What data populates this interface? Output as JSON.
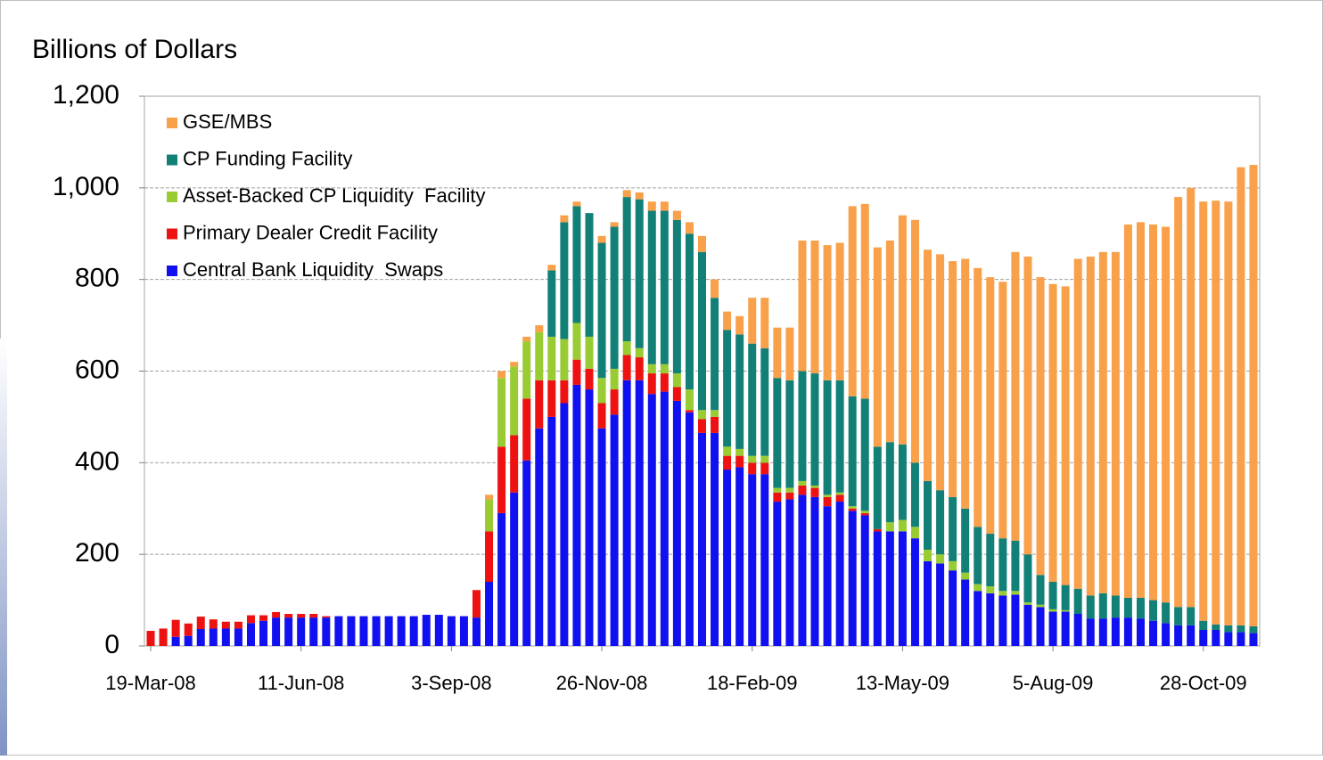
{
  "chart_data": {
    "type": "stacked_bar",
    "y_axis_label": "Billions of Dollars",
    "categories": [
      "19-Mar-08",
      null,
      null,
      null,
      null,
      null,
      null,
      null,
      null,
      null,
      null,
      null,
      "11-Jun-08",
      null,
      null,
      null,
      null,
      null,
      null,
      null,
      null,
      null,
      null,
      null,
      "3-Sep-08",
      null,
      null,
      null,
      null,
      null,
      null,
      null,
      null,
      null,
      null,
      null,
      "26-Nov-08",
      null,
      null,
      null,
      null,
      null,
      null,
      null,
      null,
      null,
      null,
      null,
      "18-Feb-09",
      null,
      null,
      null,
      null,
      null,
      null,
      null,
      null,
      null,
      null,
      null,
      "13-May-09",
      null,
      null,
      null,
      null,
      null,
      null,
      null,
      null,
      null,
      null,
      null,
      "5-Aug-09",
      null,
      null,
      null,
      null,
      null,
      null,
      null,
      null,
      null,
      null,
      null,
      "28-Oct-09",
      null,
      null,
      null,
      null
    ],
    "series": [
      {
        "name": "Central Bank Liquidity  Swaps",
        "color": "#1010f0",
        "values": [
          0,
          0,
          20,
          22,
          37,
          38,
          38,
          38,
          50,
          55,
          62,
          62,
          62,
          62,
          62,
          65,
          65,
          65,
          65,
          65,
          65,
          65,
          68,
          68,
          65,
          65,
          62,
          140,
          290,
          335,
          405,
          475,
          500,
          530,
          570,
          560,
          475,
          505,
          580,
          580,
          550,
          555,
          535,
          510,
          465,
          465,
          385,
          390,
          375,
          375,
          315,
          320,
          330,
          325,
          305,
          315,
          295,
          285,
          250,
          250,
          250,
          235,
          185,
          180,
          165,
          145,
          120,
          115,
          110,
          112,
          90,
          85,
          75,
          75,
          70,
          60,
          60,
          62,
          62,
          60,
          55,
          50,
          45,
          45,
          35,
          35,
          30,
          30,
          28
        ]
      },
      {
        "name": "Primary Dealer Credit Facility",
        "color": "#ee1111",
        "values": [
          33,
          38,
          37,
          27,
          27,
          20,
          15,
          15,
          17,
          12,
          12,
          8,
          8,
          8,
          3,
          0,
          0,
          0,
          0,
          0,
          0,
          0,
          0,
          0,
          0,
          0,
          60,
          110,
          145,
          125,
          135,
          105,
          80,
          50,
          55,
          45,
          55,
          55,
          55,
          50,
          45,
          40,
          30,
          5,
          30,
          35,
          30,
          25,
          25,
          25,
          20,
          15,
          20,
          20,
          20,
          15,
          5,
          5,
          5,
          0,
          0,
          0,
          0,
          0,
          0,
          0,
          0,
          0,
          0,
          0,
          0,
          0,
          0,
          0,
          0,
          0,
          0,
          0,
          0,
          0,
          0,
          0,
          0,
          0,
          0,
          0,
          0,
          0,
          0
        ]
      },
      {
        "name": "Asset-Backed CP Liquidity  Facility",
        "color": "#99cc33",
        "values": [
          0,
          0,
          0,
          0,
          0,
          0,
          0,
          0,
          0,
          0,
          0,
          0,
          0,
          0,
          0,
          0,
          0,
          0,
          0,
          0,
          0,
          0,
          0,
          0,
          0,
          0,
          0,
          70,
          150,
          150,
          125,
          105,
          95,
          90,
          80,
          70,
          55,
          45,
          30,
          20,
          20,
          20,
          30,
          45,
          20,
          15,
          20,
          15,
          15,
          15,
          10,
          10,
          10,
          5,
          5,
          5,
          5,
          5,
          0,
          20,
          25,
          25,
          25,
          20,
          20,
          15,
          15,
          15,
          10,
          8,
          5,
          5,
          5,
          3,
          0,
          0,
          0,
          0,
          0,
          0,
          0,
          0,
          0,
          0,
          0,
          0,
          0,
          0,
          0
        ]
      },
      {
        "name": "CP Funding Facility",
        "color": "#138078",
        "values": [
          0,
          0,
          0,
          0,
          0,
          0,
          0,
          0,
          0,
          0,
          0,
          0,
          0,
          0,
          0,
          0,
          0,
          0,
          0,
          0,
          0,
          0,
          0,
          0,
          0,
          0,
          0,
          0,
          0,
          0,
          0,
          0,
          145,
          255,
          255,
          270,
          295,
          310,
          315,
          325,
          335,
          335,
          335,
          340,
          345,
          245,
          255,
          250,
          245,
          235,
          240,
          235,
          240,
          245,
          250,
          245,
          240,
          245,
          180,
          175,
          165,
          140,
          150,
          140,
          140,
          140,
          125,
          115,
          115,
          110,
          105,
          65,
          60,
          55,
          55,
          50,
          55,
          48,
          43,
          45,
          45,
          45,
          40,
          40,
          20,
          12,
          15,
          15,
          15
        ]
      },
      {
        "name": "GSE/MBS",
        "color": "#f9a04a",
        "values": [
          0,
          0,
          0,
          0,
          0,
          0,
          0,
          0,
          0,
          0,
          0,
          0,
          0,
          0,
          0,
          0,
          0,
          0,
          0,
          0,
          0,
          0,
          0,
          0,
          0,
          0,
          0,
          10,
          15,
          10,
          10,
          15,
          12,
          15,
          10,
          0,
          15,
          10,
          15,
          15,
          20,
          20,
          20,
          25,
          35,
          40,
          40,
          40,
          100,
          110,
          110,
          115,
          285,
          290,
          295,
          300,
          415,
          425,
          435,
          440,
          500,
          530,
          505,
          515,
          515,
          545,
          565,
          560,
          560,
          630,
          650,
          650,
          650,
          652,
          720,
          740,
          745,
          750,
          815,
          820,
          820,
          820,
          895,
          915,
          915,
          925,
          925,
          1000,
          1007
        ]
      }
    ],
    "ylim": [
      0,
      1200
    ],
    "yticks": [
      0,
      200,
      400,
      600,
      800,
      {
        "value": 1000,
        "label": "1,000"
      },
      {
        "value": 1200,
        "label": "1,200"
      }
    ],
    "grid": true,
    "legend": "upper left"
  }
}
